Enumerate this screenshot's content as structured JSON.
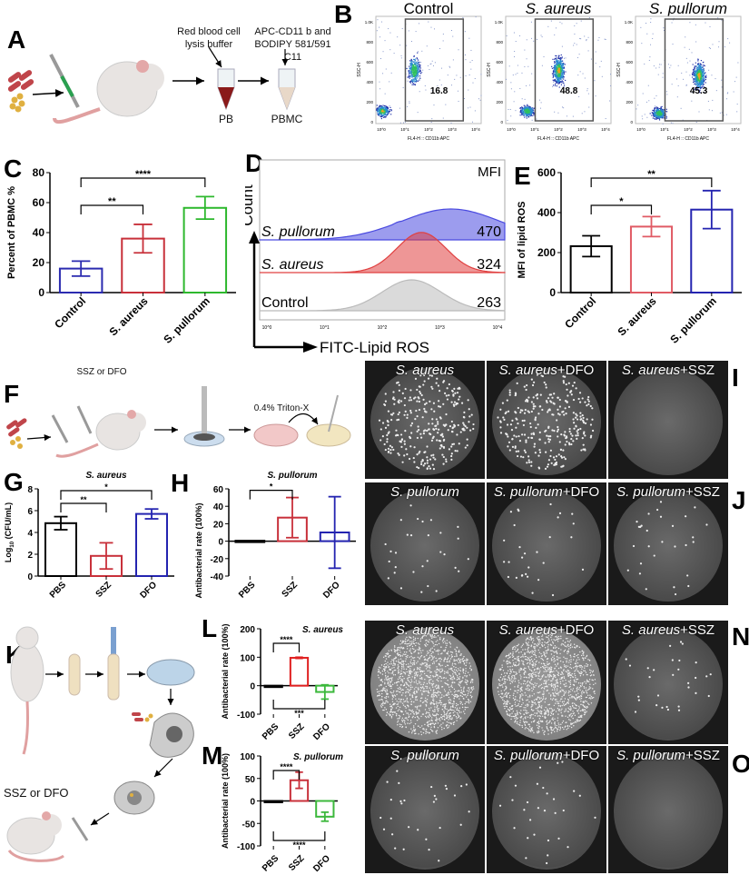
{
  "panel_letters": [
    "A",
    "B",
    "C",
    "D",
    "E",
    "F",
    "G",
    "H",
    "I",
    "J",
    "K",
    "L",
    "M",
    "N",
    "O"
  ],
  "schematic_a": {
    "reagent1": "Red blood cell lysis buffer",
    "reagent2": "APC-CD11 b and BODIPY 581/591 C11",
    "tube1": "PB",
    "tube2": "PBMC"
  },
  "schematic_f": {
    "treatment": "SSZ or DFO",
    "reagent": "0.4% Triton-X"
  },
  "schematic_k": {
    "treatment": "SSZ or DFO"
  },
  "flow_b": {
    "x_label": "FL4-H :: CD11b APC",
    "y_label": "SSC-H",
    "y_ticks": [
      "0",
      "200",
      "400",
      "600",
      "800",
      "1.0K"
    ],
    "x_ticks": [
      "10^0",
      "10^1",
      "10^2",
      "10^3",
      "10^4"
    ],
    "plots": [
      {
        "title": "Control",
        "italic": false,
        "gate_percent": "16.8"
      },
      {
        "title": "S. aureus",
        "italic": true,
        "gate_percent": "48.8"
      },
      {
        "title": "S. pullorum",
        "italic": true,
        "gate_percent": "45.3"
      }
    ]
  },
  "histogram_d": {
    "y_label": "Count",
    "x_label": "FITC-Lipid ROS",
    "mfi_header": "MFI",
    "x_ticks": [
      "10^0",
      "10^1",
      "10^2",
      "10^3",
      "10^4"
    ],
    "series": [
      {
        "name": "S. pullorum",
        "mfi": "470",
        "color": "#4a4ae0"
      },
      {
        "name": "S. aureus",
        "mfi": "324",
        "color": "#e04040"
      },
      {
        "name": "Control",
        "mfi": "263",
        "color": "#bbbbbb"
      }
    ]
  },
  "chart_data": [
    {
      "id": "C",
      "type": "bar",
      "title": "",
      "ylabel": "Percent of PBMC %",
      "categories": [
        "Control",
        "S. aureus",
        "S. pullorum"
      ],
      "values": [
        16,
        36,
        56.5
      ],
      "errors": [
        5,
        9.5,
        7.5
      ],
      "colors": [
        "#2b2bb0",
        "#c8303a",
        "#2db82d"
      ],
      "ylim": [
        0,
        80
      ],
      "yticks": [
        0,
        20,
        40,
        60,
        80
      ],
      "significance": [
        {
          "from": 0,
          "to": 1,
          "label": "**",
          "side": "top"
        },
        {
          "from": 0,
          "to": 2,
          "label": "****",
          "side": "top"
        }
      ]
    },
    {
      "id": "E",
      "type": "bar",
      "title": "",
      "ylabel": "MFI of lipid ROS",
      "categories": [
        "Control",
        "S. aureus",
        "S. pullorum"
      ],
      "values": [
        232,
        330,
        415
      ],
      "errors": [
        52,
        50,
        95
      ],
      "colors": [
        "#000000",
        "#e05a64",
        "#2424b0"
      ],
      "ylim": [
        0,
        600
      ],
      "yticks": [
        0,
        200,
        400,
        600
      ],
      "significance": [
        {
          "from": 0,
          "to": 1,
          "label": "*",
          "side": "top"
        },
        {
          "from": 0,
          "to": 2,
          "label": "**",
          "side": "top"
        }
      ]
    },
    {
      "id": "G",
      "type": "bar",
      "title": "S. aureus",
      "ylabel": "Log10 (CFU/mL)",
      "categories": [
        "PBS",
        "SSZ",
        "DFO"
      ],
      "values": [
        4.85,
        1.85,
        5.7
      ],
      "errors": [
        0.6,
        1.2,
        0.45
      ],
      "colors": [
        "#000000",
        "#c8303a",
        "#2424b0"
      ],
      "ylim": [
        0,
        8
      ],
      "yticks": [
        0,
        2,
        4,
        6,
        8
      ],
      "significance": [
        {
          "from": 0,
          "to": 1,
          "label": "**",
          "side": "top"
        },
        {
          "from": 0,
          "to": 2,
          "label": "*",
          "side": "top"
        }
      ]
    },
    {
      "id": "H",
      "type": "bar",
      "title": "S. pullorum",
      "ylabel": "Antibacterial rate (100%)",
      "categories": [
        "PBS",
        "SSZ",
        "DFO"
      ],
      "values": [
        0.5,
        27,
        10
      ],
      "errors": [
        0,
        23,
        41
      ],
      "colors": [
        "#000000",
        "#c8303a",
        "#2424b0"
      ],
      "ylim": [
        -40,
        60
      ],
      "yticks": [
        -40,
        -20,
        0,
        20,
        40,
        60
      ],
      "significance": [
        {
          "from": 0,
          "to": 1,
          "label": "*",
          "side": "top"
        }
      ]
    },
    {
      "id": "L",
      "type": "bar",
      "title": "S. aureus",
      "ylabel": "Antibacterial rate (100%)",
      "categories": [
        "PBS",
        "SSZ",
        "DFO"
      ],
      "values": [
        0,
        98,
        -22
      ],
      "errors": [
        0,
        2,
        25
      ],
      "colors": [
        "#000000",
        "#e02020",
        "#3cb83c"
      ],
      "ylim": [
        -100,
        200
      ],
      "yticks": [
        -100,
        0,
        100,
        200
      ],
      "significance": [
        {
          "from": 0,
          "to": 1,
          "label": "****",
          "side": "top"
        },
        {
          "from": 0,
          "to": 2,
          "label": "***",
          "side": "bottom"
        }
      ]
    },
    {
      "id": "M",
      "type": "bar",
      "title": "S. pullorum",
      "ylabel": "Antibacterial rate (100%)",
      "categories": [
        "PBS",
        "SSZ",
        "DFO"
      ],
      "values": [
        0,
        46,
        -35
      ],
      "errors": [
        0,
        18,
        10
      ],
      "colors": [
        "#000000",
        "#c8303a",
        "#3cb83c"
      ],
      "ylim": [
        -100,
        100
      ],
      "yticks": [
        -100,
        -50,
        0,
        50,
        100
      ],
      "significance": [
        {
          "from": 0,
          "to": 1,
          "label": "****",
          "side": "top"
        },
        {
          "from": 0,
          "to": 2,
          "label": "****",
          "side": "bottom"
        }
      ]
    }
  ],
  "plates": {
    "I": [
      {
        "species": "S. aureus",
        "suffix": "",
        "colony_density": "many"
      },
      {
        "species": "S. aureus",
        "suffix": "+DFO",
        "colony_density": "many"
      },
      {
        "species": "S. aureus",
        "suffix": "+SSZ",
        "colony_density": "none"
      }
    ],
    "J": [
      {
        "species": "S. pullorum",
        "suffix": "",
        "colony_density": "few"
      },
      {
        "species": "S. pullorum",
        "suffix": "+DFO",
        "colony_density": "few"
      },
      {
        "species": "S. pullorum",
        "suffix": "+SSZ",
        "colony_density": "few"
      }
    ],
    "N": [
      {
        "species": "S. aureus",
        "suffix": "",
        "colony_density": "lawn"
      },
      {
        "species": "S. aureus",
        "suffix": "+DFO",
        "colony_density": "lawn"
      },
      {
        "species": "S. aureus",
        "suffix": "+SSZ",
        "colony_density": "few"
      }
    ],
    "O": [
      {
        "species": "S. pullorum",
        "suffix": "",
        "colony_density": "few"
      },
      {
        "species": "S. pullorum",
        "suffix": "+DFO",
        "colony_density": "few"
      },
      {
        "species": "S. pullorum",
        "suffix": "+SSZ",
        "colony_density": "none"
      }
    ]
  }
}
